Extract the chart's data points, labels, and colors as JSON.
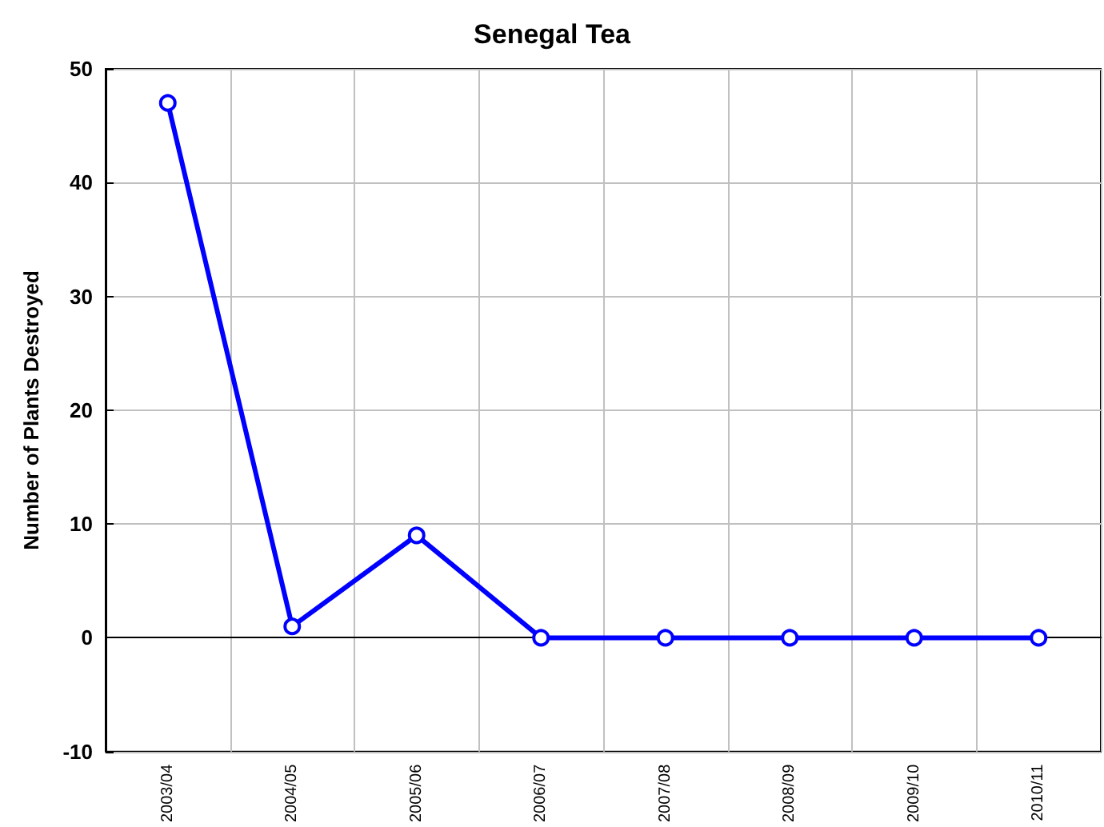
{
  "chart_data": {
    "type": "line",
    "title": "Senegal Tea",
    "ylabel": "Number of Plants Destroyed",
    "categories": [
      "2003/04",
      "2004/05",
      "2005/06",
      "2006/07",
      "2007/08",
      "2008/09",
      "2009/10",
      "2010/11"
    ],
    "series": [
      {
        "color": "#0000ff",
        "values": [
          47,
          1,
          9,
          0,
          0,
          0,
          0,
          0
        ]
      }
    ],
    "ylim": [
      -10,
      50
    ],
    "yticks": [
      -10,
      0,
      10,
      20,
      30,
      40,
      50
    ],
    "grid": true,
    "marker": "circle",
    "line_style": "solid"
  }
}
